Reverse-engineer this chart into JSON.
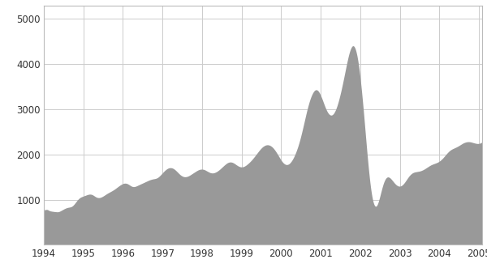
{
  "fill_color": "#999999",
  "background_color": "#ffffff",
  "grid_color": "#cccccc",
  "tick_label_color": "#333333",
  "ylim": [
    0,
    5300
  ],
  "yticks": [
    1000,
    2000,
    3000,
    4000,
    5000
  ],
  "xlim_start": 1994.0,
  "xlim_end": 2005.08,
  "xtick_positions": [
    1994,
    1995,
    1996,
    1997,
    1998,
    1999,
    2000,
    2001,
    2002,
    2003,
    2004,
    2005
  ],
  "xtick_labels": [
    "1994",
    "1995",
    "1996",
    "1997",
    "1998",
    "1999",
    "2000",
    "2001",
    "2002",
    "2003",
    "2004",
    "2005"
  ],
  "weekly_values": [
    776,
    773,
    776,
    778,
    780,
    782,
    784,
    779,
    777,
    770,
    764,
    759,
    754,
    750,
    748,
    746,
    744,
    742,
    741,
    739,
    738,
    736,
    735,
    734,
    733,
    732,
    731,
    730,
    730,
    731,
    733,
    736,
    740,
    745,
    750,
    756,
    762,
    768,
    774,
    780,
    786,
    792,
    798,
    803,
    808,
    813,
    817,
    821,
    824,
    827,
    829,
    831,
    833,
    835,
    837,
    840,
    844,
    849,
    856,
    864,
    874,
    885,
    897,
    910,
    924,
    938,
    952,
    966,
    980,
    993,
    1005,
    1016,
    1026,
    1035,
    1043,
    1050,
    1056,
    1061,
    1066,
    1070,
    1074,
    1078,
    1082,
    1086,
    1090,
    1094,
    1098,
    1102,
    1106,
    1110,
    1113,
    1116,
    1118,
    1120,
    1121,
    1121,
    1120,
    1118,
    1115,
    1111,
    1106,
    1100,
    1093,
    1086,
    1079,
    1072,
    1065,
    1059,
    1054,
    1050,
    1047,
    1045,
    1044,
    1044,
    1045,
    1047,
    1050,
    1054,
    1058,
    1063,
    1069,
    1075,
    1081,
    1088,
    1095,
    1102,
    1109,
    1116,
    1123,
    1130,
    1137,
    1143,
    1149,
    1155,
    1161,
    1167,
    1173,
    1179,
    1185,
    1191,
    1197,
    1203,
    1210,
    1217,
    1224,
    1231,
    1239,
    1247,
    1255,
    1263,
    1271,
    1279,
    1287,
    1295,
    1303,
    1311,
    1318,
    1325,
    1332,
    1338,
    1344,
    1349,
    1354,
    1358,
    1361,
    1363,
    1364,
    1364,
    1363,
    1361,
    1358,
    1354,
    1349,
    1343,
    1337,
    1330,
    1323,
    1316,
    1309,
    1303,
    1297,
    1293,
    1290,
    1288,
    1287,
    1288,
    1289,
    1292,
    1295,
    1299,
    1303,
    1308,
    1313,
    1318,
    1323,
    1328,
    1333,
    1338,
    1343,
    1348,
    1353,
    1358,
    1363,
    1368,
    1373,
    1378,
    1383,
    1388,
    1393,
    1398,
    1403,
    1408,
    1413,
    1418,
    1423,
    1428,
    1432,
    1436,
    1440,
    1444,
    1447,
    1450,
    1453,
    1456,
    1458,
    1460,
    1462,
    1464,
    1466,
    1469,
    1472,
    1476,
    1481,
    1487,
    1494,
    1502,
    1511,
    1521,
    1531,
    1542,
    1553,
    1565,
    1576,
    1588,
    1600,
    1612,
    1623,
    1634,
    1644,
    1654,
    1663,
    1671,
    1679,
    1686,
    1692,
    1697,
    1701,
    1704,
    1706,
    1707,
    1707,
    1706,
    1704,
    1701,
    1697,
    1692,
    1686,
    1679,
    1671,
    1662,
    1653,
    1643,
    1633,
    1622,
    1611,
    1600,
    1589,
    1578,
    1568,
    1558,
    1549,
    1541,
    1533,
    1527,
    1521,
    1516,
    1512,
    1509,
    1507,
    1506,
    1506,
    1507,
    1509,
    1511,
    1514,
    1518,
    1522,
    1527,
    1533,
    1539,
    1545,
    1552,
    1559,
    1566,
    1573,
    1580,
    1587,
    1594,
    1601,
    1608,
    1615,
    1622,
    1629,
    1636,
    1642,
    1648,
    1654,
    1659,
    1663,
    1667,
    1670,
    1672,
    1674,
    1675,
    1675,
    1674,
    1673,
    1671,
    1668,
    1664,
    1660,
    1655,
    1649,
    1643,
    1637,
    1631,
    1625,
    1619,
    1613,
    1608,
    1603,
    1599,
    1595,
    1593,
    1591,
    1590,
    1590,
    1591,
    1592,
    1595,
    1598,
    1602,
    1607,
    1612,
    1618,
    1624,
    1631,
    1639,
    1647,
    1655,
    1664,
    1673,
    1682,
    1692,
    1702,
    1712,
    1722,
    1732,
    1742,
    1752,
    1762,
    1771,
    1780,
    1789,
    1797,
    1805,
    1812,
    1818,
    1823,
    1827,
    1830,
    1832,
    1833,
    1833,
    1832,
    1830,
    1827,
    1823,
    1818,
    1813,
    1807,
    1800,
    1793,
    1785,
    1777,
    1770,
    1763,
    1756,
    1749,
    1743,
    1738,
    1734,
    1730,
    1727,
    1725,
    1724,
    1724,
    1725,
    1727,
    1730,
    1734,
    1738,
    1744,
    1750,
    1757,
    1765,
    1773,
    1782,
    1791,
    1800,
    1810,
    1820,
    1830,
    1841,
    1852,
    1863,
    1875,
    1887,
    1900,
    1913,
    1926,
    1939,
    1953,
    1967,
    1981,
    1995,
    2009,
    2023,
    2037,
    2051,
    2065,
    2079,
    2092,
    2105,
    2118,
    2130,
    2141,
    2152,
    2162,
    2171,
    2179,
    2186,
    2193,
    2199,
    2204,
    2208,
    2211,
    2213,
    2214,
    2214,
    2213,
    2211,
    2208,
    2204,
    2199,
    2193,
    2186,
    2178,
    2169,
    2159,
    2148,
    2136,
    2123,
    2109,
    2094,
    2079,
    2063,
    2046,
    2029,
    2011,
    1993,
    1975,
    1957,
    1939,
    1921,
    1903,
    1886,
    1870,
    1855,
    1841,
    1828,
    1816,
    1806,
    1797,
    1790,
    1784,
    1780,
    1777,
    1776,
    1777,
    1779,
    1783,
    1788,
    1795,
    1804,
    1815,
    1827,
    1841,
    1856,
    1872,
    1890,
    1909,
    1929,
    1951,
    1974,
    1999,
    2025,
    2052,
    2080,
    2110,
    2141,
    2173,
    2207,
    2243,
    2280,
    2318,
    2358,
    2399,
    2442,
    2486,
    2531,
    2576,
    2622,
    2669,
    2716,
    2763,
    2810,
    2857,
    2903,
    2948,
    2992,
    3034,
    3074,
    3113,
    3150,
    3185,
    3218,
    3249,
    3278,
    3305,
    3329,
    3351,
    3371,
    3388,
    3403,
    3415,
    3424,
    3430,
    3433,
    3433,
    3430,
    3424,
    3415,
    3403,
    3388,
    3370,
    3350,
    3328,
    3304,
    3278,
    3251,
    3223,
    3194,
    3165,
    3136,
    3107,
    3079,
    3051,
    3025,
    3000,
    2977,
    2956,
    2937,
    2920,
    2906,
    2894,
    2884,
    2877,
    2873,
    2871,
    2872,
    2876,
    2883,
    2892,
    2904,
    2919,
    2937,
    2957,
    2980,
    3006,
    3034,
    3064,
    3097,
    3132,
    3169,
    3208,
    3249,
    3292,
    3336,
    3381,
    3428,
    3477,
    3526,
    3577,
    3628,
    3680,
    3733,
    3786,
    3840,
    3893,
    3946,
    3998,
    4049,
    4098,
    4145,
    4189,
    4230,
    4268,
    4302,
    4332,
    4357,
    4378,
    4393,
    4403,
    4407,
    4405,
    4397,
    4382,
    4361,
    4333,
    4298,
    4256,
    4208,
    4153,
    4091,
    4022,
    3947,
    3866,
    3779,
    3686,
    3588,
    3485,
    3377,
    3265,
    3149,
    3030,
    2908,
    2783,
    2657,
    2530,
    2403,
    2277,
    2152,
    2029,
    1909,
    1793,
    1682,
    1576,
    1476,
    1382,
    1295,
    1215,
    1143,
    1078,
    1022,
    974,
    934,
    902,
    878,
    862,
    854,
    853,
    859,
    872,
    892,
    917,
    948,
    983,
    1021,
    1061,
    1103,
    1146,
    1188,
    1229,
    1269,
    1306,
    1341,
    1373,
    1401,
    1426,
    1447,
    1465,
    1479,
    1490,
    1497,
    1501,
    1502,
    1500,
    1496,
    1490,
    1482,
    1472,
    1461,
    1449,
    1436,
    1423,
    1410,
    1396,
    1383,
    1370,
    1358,
    1347,
    1336,
    1327,
    1319,
    1312,
    1306,
    1302,
    1299,
    1298,
    1298,
    1300,
    1303,
    1308,
    1315,
    1323,
    1332,
    1343,
    1355,
    1368,
    1382,
    1397,
    1412,
    1428,
    1444,
    1460,
    1476,
    1491,
    1506,
    1520,
    1533,
    1545,
    1556,
    1566,
    1575,
    1583,
    1590,
    1596,
    1601,
    1605,
    1609,
    1612,
    1614,
    1616,
    1618,
    1620,
    1622,
    1624,
    1626,
    1628,
    1630,
    1633,
    1636,
    1639,
    1643,
    1647,
    1652,
    1657,
    1662,
    1668,
    1674,
    1680,
    1687,
    1694,
    1701,
    1708,
    1715,
    1722,
    1729,
    1736,
    1743,
    1750,
    1756,
    1762,
    1768,
    1773,
    1778,
    1783,
    1787,
    1791,
    1795,
    1799,
    1803,
    1807,
    1811,
    1815,
    1820,
    1825,
    1830,
    1836,
    1843,
    1850,
    1858,
    1866,
    1875,
    1885,
    1895,
    1905,
    1916,
    1928,
    1940,
    1953,
    1965,
    1978,
    1991,
    2003,
    2016,
    2028,
    2040,
    2051,
    2062,
    2072,
    2081,
    2090,
    2098,
    2105,
    2112,
    2118,
    2124,
    2129,
    2134,
    2139,
    2144,
    2149,
    2154,
    2159,
    2164,
    2170,
    2175,
    2181,
    2187,
    2193,
    2200,
    2207,
    2213,
    2220,
    2227,
    2233,
    2240,
    2246,
    2252,
    2257,
    2262,
    2266,
    2270,
    2273,
    2276,
    2278,
    2280,
    2281,
    2282,
    2282,
    2282,
    2281,
    2280,
    2278,
    2276,
    2273,
    2270,
    2267,
    2264,
    2261,
    2258,
    2255,
    2252,
    2249,
    2247,
    2245,
    2243,
    2242,
    2242,
    2242,
    2243,
    2245,
    2248,
    2252,
    2257,
    2263,
    2269,
    2177
  ]
}
